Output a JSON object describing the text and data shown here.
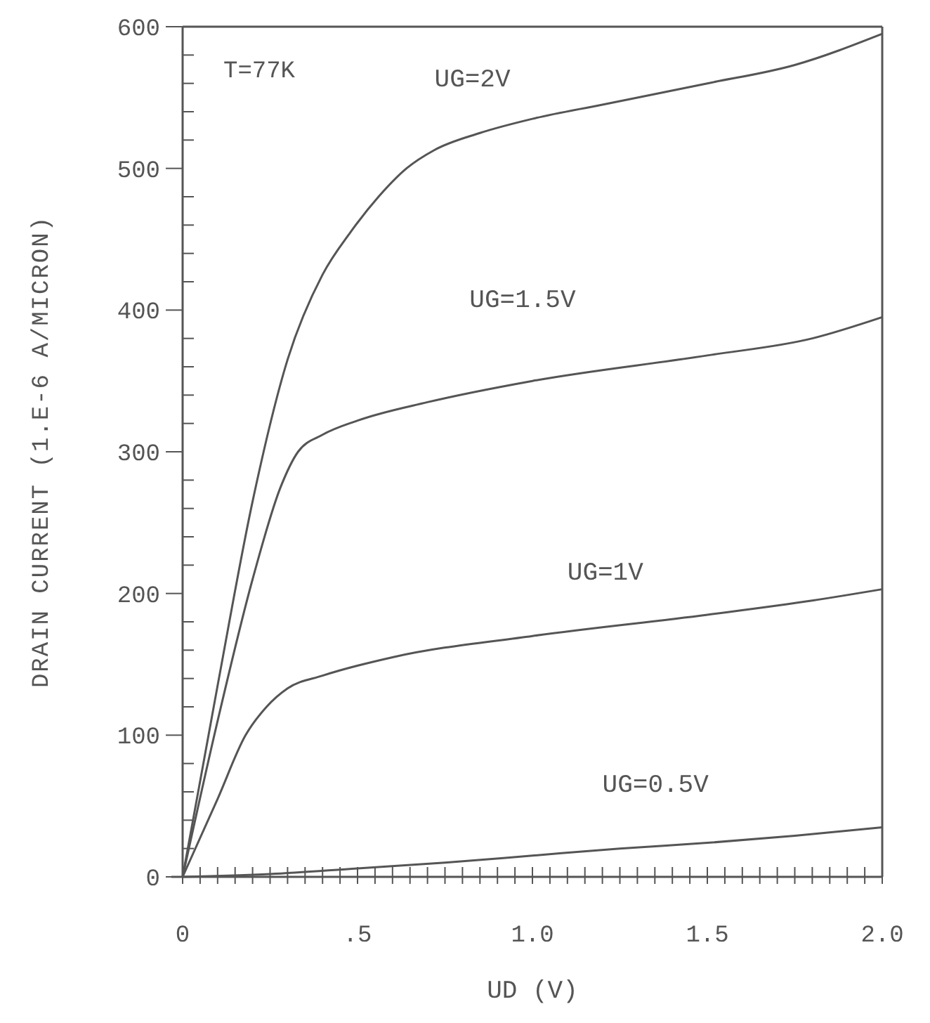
{
  "chart_data": {
    "type": "line",
    "xlabel": "UD (V)",
    "ylabel": "DRAIN CURRENT (1.E-6 A/MICRON)",
    "annotations": [
      "T=77K"
    ],
    "xlim": [
      0,
      2
    ],
    "ylim": [
      0,
      600
    ],
    "xticks": [
      {
        "value": 0,
        "label": "0"
      },
      {
        "value": 0.05,
        "label": null
      },
      {
        "value": 0.1,
        "label": null
      },
      {
        "value": 0.15,
        "label": null
      },
      {
        "value": 0.2,
        "label": null
      },
      {
        "value": 0.25,
        "label": null
      },
      {
        "value": 0.3,
        "label": null
      },
      {
        "value": 0.35,
        "label": null
      },
      {
        "value": 0.4,
        "label": null
      },
      {
        "value": 0.45,
        "label": null
      },
      {
        "value": 0.5,
        "label": ".5"
      },
      {
        "value": 0.55,
        "label": null
      },
      {
        "value": 0.6,
        "label": null
      },
      {
        "value": 0.65,
        "label": null
      },
      {
        "value": 0.7,
        "label": null
      },
      {
        "value": 0.75,
        "label": null
      },
      {
        "value": 0.8,
        "label": null
      },
      {
        "value": 0.85,
        "label": null
      },
      {
        "value": 0.9,
        "label": null
      },
      {
        "value": 0.95,
        "label": null
      },
      {
        "value": 1,
        "label": "1.0"
      },
      {
        "value": 1.05,
        "label": null
      },
      {
        "value": 1.1,
        "label": null
      },
      {
        "value": 1.15,
        "label": null
      },
      {
        "value": 1.2,
        "label": null
      },
      {
        "value": 1.25,
        "label": null
      },
      {
        "value": 1.3,
        "label": null
      },
      {
        "value": 1.35,
        "label": null
      },
      {
        "value": 1.4,
        "label": null
      },
      {
        "value": 1.45,
        "label": null
      },
      {
        "value": 1.5,
        "label": "1.5"
      },
      {
        "value": 1.55,
        "label": null
      },
      {
        "value": 1.6,
        "label": null
      },
      {
        "value": 1.65,
        "label": null
      },
      {
        "value": 1.7,
        "label": null
      },
      {
        "value": 1.75,
        "label": null
      },
      {
        "value": 1.8,
        "label": null
      },
      {
        "value": 1.85,
        "label": null
      },
      {
        "value": 1.9,
        "label": null
      },
      {
        "value": 1.95,
        "label": null
      },
      {
        "value": 2,
        "label": "2.0"
      }
    ],
    "yticks": [
      0,
      {
        "value": 20,
        "label": null
      },
      {
        "value": 40,
        "label": null
      },
      {
        "value": 60,
        "label": null
      },
      {
        "value": 80,
        "label": null
      },
      100,
      {
        "value": 120,
        "label": null
      },
      {
        "value": 140,
        "label": null
      },
      {
        "value": 160,
        "label": null
      },
      {
        "value": 180,
        "label": null
      },
      200,
      {
        "value": 220,
        "label": null
      },
      {
        "value": 240,
        "label": null
      },
      {
        "value": 260,
        "label": null
      },
      {
        "value": 280,
        "label": null
      },
      300,
      {
        "value": 320,
        "label": null
      },
      {
        "value": 340,
        "label": null
      },
      {
        "value": 360,
        "label": null
      },
      {
        "value": 380,
        "label": null
      },
      400,
      {
        "value": 420,
        "label": null
      },
      {
        "value": 440,
        "label": null
      },
      {
        "value": 460,
        "label": null
      },
      {
        "value": 480,
        "label": null
      },
      500,
      {
        "value": 520,
        "label": null
      },
      {
        "value": 540,
        "label": null
      },
      {
        "value": 560,
        "label": null
      },
      {
        "value": 580,
        "label": null
      },
      600
    ],
    "marker": "none",
    "line_style": "solid",
    "grid": false,
    "legend": false,
    "series": [
      {
        "name": "UG=2V",
        "color": "#555555",
        "x": [
          0,
          0.1,
          0.2,
          0.3,
          0.4,
          0.48,
          0.56,
          0.64,
          0.72,
          0.85,
          1.0,
          1.2,
          1.5,
          1.75,
          2.0
        ],
        "values": [
          0,
          135,
          265,
          365,
          425,
          455,
          480,
          500,
          513,
          525,
          535,
          545,
          560,
          573,
          595
        ]
      },
      {
        "name": "UG=1.5V",
        "color": "#555555",
        "x": [
          0,
          0.1,
          0.2,
          0.28,
          0.33,
          0.4,
          0.5,
          0.7,
          1.0,
          1.5,
          1.8,
          2.0
        ],
        "values": [
          0,
          110,
          210,
          275,
          300,
          312,
          322,
          335,
          350,
          368,
          380,
          395
        ]
      },
      {
        "name": "UG=1V",
        "color": "#555555",
        "x": [
          0,
          0.1,
          0.18,
          0.24,
          0.3,
          0.4,
          0.6,
          1.0,
          1.5,
          1.8,
          2.0
        ],
        "values": [
          0,
          55,
          100,
          120,
          133,
          142,
          155,
          170,
          185,
          195,
          203
        ]
      },
      {
        "name": "UG=0.5V",
        "color": "#555555",
        "x": [
          0,
          0.25,
          0.5,
          0.75,
          1.0,
          1.25,
          1.5,
          1.75,
          2.0
        ],
        "values": [
          0,
          2,
          6,
          10,
          15,
          20,
          24,
          29,
          35
        ]
      }
    ]
  }
}
